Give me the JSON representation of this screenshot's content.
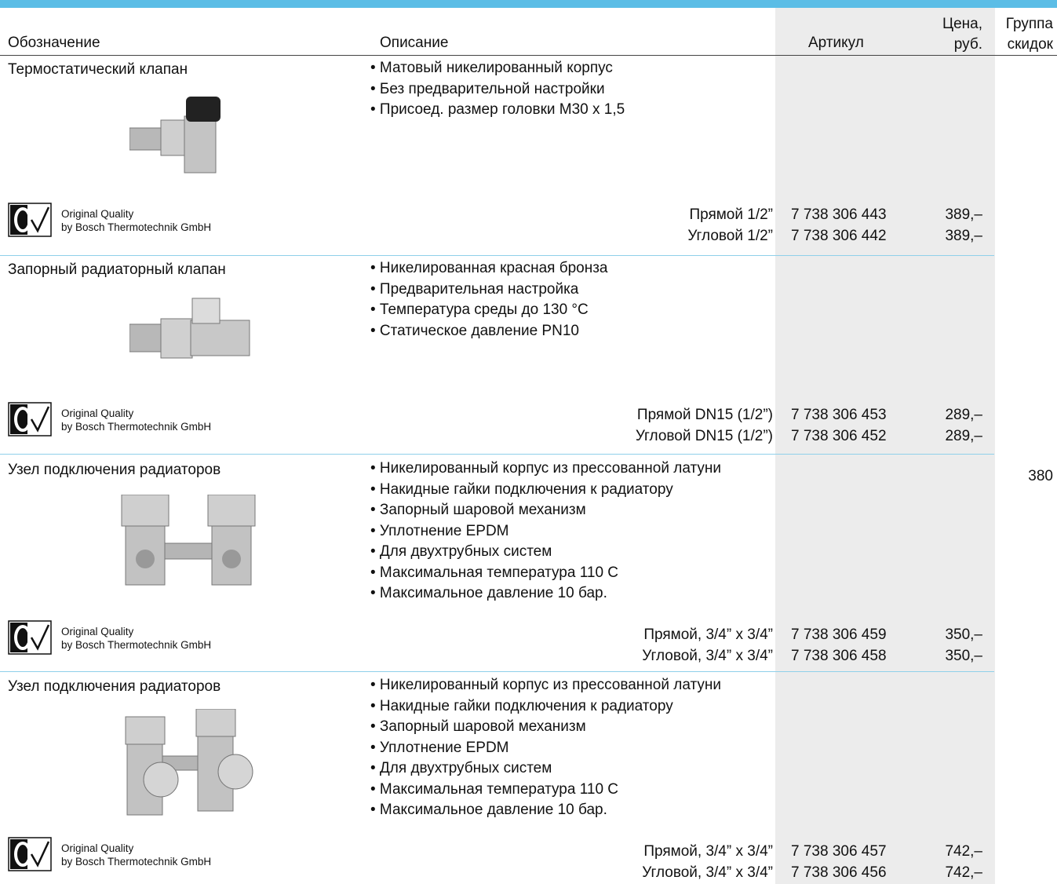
{
  "header": {
    "designation": "Обозначение",
    "description": "Описание",
    "article": "Артикул",
    "price": [
      "Цена,",
      "руб."
    ],
    "group": [
      "Группа",
      "скидок"
    ]
  },
  "discount_group": "380",
  "products": [
    {
      "name": "Термостатический клапан",
      "bullets": [
        "• Матовый никелированный корпус",
        "• Без предварительной настройки",
        "• Присоед. размер головки М30 х 1,5"
      ],
      "logo": [
        "Original Quality",
        "by Bosch Thermotechnik GmbH"
      ],
      "variants": [
        {
          "variant": "Прямой 1/2”",
          "article": "7 738 306 443",
          "price": "389,–"
        },
        {
          "variant": "Угловой 1/2”",
          "article": "7 738 306 442",
          "price": "389,–"
        }
      ]
    },
    {
      "name": "Запорный радиаторный клапан",
      "bullets": [
        "• Никелированная красная бронза",
        "• Предварительная настройка",
        "• Температура среды до 130 °С",
        "• Статическое давление PN10"
      ],
      "logo": [
        "Original Quality",
        "by Bosch Thermotechnik GmbH"
      ],
      "variants": [
        {
          "variant": "Прямой DN15 (1/2”)",
          "article": "7 738 306 453",
          "price": "289,–"
        },
        {
          "variant": "Угловой DN15 (1/2”)",
          "article": "7 738 306 452",
          "price": "289,–"
        }
      ]
    },
    {
      "name": "Узел подключения радиаторов",
      "bullets": [
        "• Никелированный корпус из прессованной латуни",
        "• Накидные гайки подключения к радиатору",
        "• Запорный шаровой механизм",
        "• Уплотнение EPDM",
        "• Для двухтрубных систем",
        "• Максимальная температура 110 С",
        "• Максимальное давление 10 бар."
      ],
      "logo": [
        "Original Quality",
        "by Bosch Thermotechnik GmbH"
      ],
      "variants": [
        {
          "variant": "Прямой, 3/4” х 3/4”",
          "article": "7 738 306 459",
          "price": "350,–"
        },
        {
          "variant": "Угловой, 3/4” х 3/4”",
          "article": "7 738 306 458",
          "price": "350,–"
        }
      ]
    },
    {
      "name": "Узел подключения радиаторов",
      "bullets": [
        "• Никелированный корпус из прессованной латуни",
        "• Накидные гайки подключения к радиатору",
        "• Запорный шаровой механизм",
        "• Уплотнение EPDM",
        "• Для двухтрубных систем",
        "• Максимальная температура 110 С",
        "• Максимальное давление 10 бар."
      ],
      "logo": [
        "Original Quality",
        "by Bosch Thermotechnik GmbH"
      ],
      "variants": [
        {
          "variant": "Прямой, 3/4” х 3/4”",
          "article": "7 738 306 457",
          "price": "742,–"
        },
        {
          "variant": "Угловой, 3/4” х 3/4”",
          "article": "7 738 306 456",
          "price": "742,–"
        }
      ]
    }
  ]
}
